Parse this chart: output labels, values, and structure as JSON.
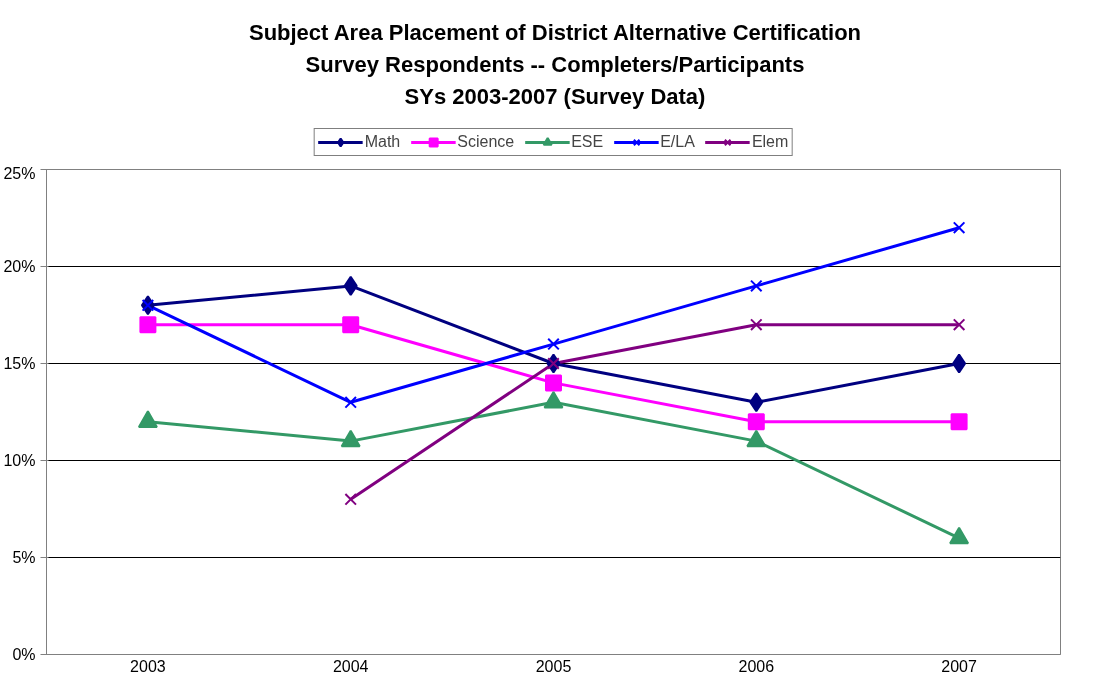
{
  "chart_data": {
    "type": "line",
    "title": "Subject Area Placement of District Alternative Certification\nSurvey Respondents -- Completers/Participants\nSYs 2003-2007 (Survey Data)",
    "categories": [
      "2003",
      "2004",
      "2005",
      "2006",
      "2007"
    ],
    "series": [
      {
        "name": "Math",
        "color": "#000080",
        "marker": "diamond",
        "values": [
          18,
          19,
          15,
          13,
          15
        ]
      },
      {
        "name": "Science",
        "color": "#ff00ff",
        "marker": "square",
        "values": [
          17,
          17,
          14,
          12,
          12
        ]
      },
      {
        "name": "ESE",
        "color": "#339966",
        "marker": "triangle",
        "values": [
          12,
          11,
          13,
          11,
          6
        ]
      },
      {
        "name": "E/LA",
        "color": "#0000ff",
        "marker": "cross",
        "values": [
          18,
          13,
          16,
          19,
          22
        ]
      },
      {
        "name": "Elem",
        "color": "#800080",
        "marker": "cross",
        "values": [
          null,
          8,
          15,
          17,
          17
        ]
      }
    ],
    "ylim": [
      0,
      25
    ],
    "yticks": [
      {
        "value": 0,
        "label": "0%"
      },
      {
        "value": 5,
        "label": "5%"
      },
      {
        "value": 10,
        "label": "10%"
      },
      {
        "value": 15,
        "label": "15%"
      },
      {
        "value": 20,
        "label": "20%"
      },
      {
        "value": 25,
        "label": "25%"
      }
    ],
    "grid": "y",
    "legend": "top",
    "line_style": "solid"
  }
}
